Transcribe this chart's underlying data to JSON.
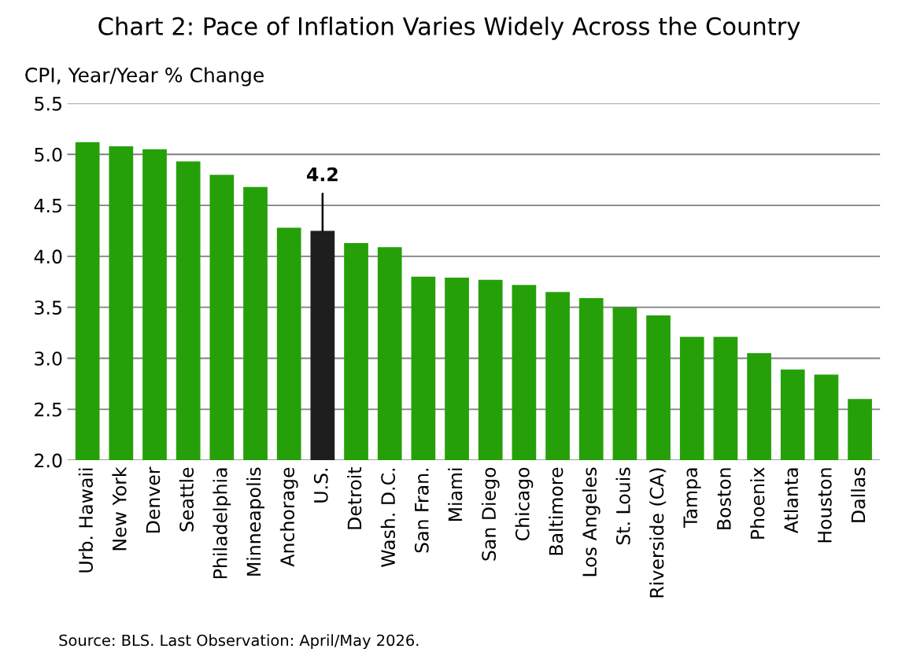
{
  "chart_data": {
    "type": "bar",
    "title": "Chart 2: Pace of Inflation Varies Widely Across the Country",
    "ylabel": "CPI, Year/Year % Change",
    "categories": [
      "Urb. Hawaii",
      "New York",
      "Denver",
      "Seattle",
      "Philadelphia",
      "Minneapolis",
      "Anchorage",
      "U.S.",
      "Detroit",
      "Wash. D.C.",
      "San Fran.",
      "Miami",
      "San Diego",
      "Chicago",
      "Baltimore",
      "Los Angeles",
      "St. Louis",
      "Riverside (CA)",
      "Tampa",
      "Boston",
      "Phoenix",
      "Atlanta",
      "Houston",
      "Dallas"
    ],
    "values": [
      5.12,
      5.08,
      5.05,
      4.93,
      4.8,
      4.68,
      4.28,
      4.25,
      4.13,
      4.09,
      3.8,
      3.79,
      3.77,
      3.72,
      3.65,
      3.59,
      3.5,
      3.42,
      3.21,
      3.21,
      3.05,
      2.89,
      2.84,
      2.6
    ],
    "colors": [
      "#26a009",
      "#26a009",
      "#26a009",
      "#26a009",
      "#26a009",
      "#26a009",
      "#26a009",
      "#1e1e1e",
      "#26a009",
      "#26a009",
      "#26a009",
      "#26a009",
      "#26a009",
      "#26a009",
      "#26a009",
      "#26a009",
      "#26a009",
      "#26a009",
      "#26a009",
      "#26a009",
      "#26a009",
      "#26a009",
      "#26a009",
      "#26a009"
    ],
    "ylim": [
      2.0,
      5.5
    ],
    "yticks": [
      {
        "value": 2.0,
        "label": "2.0"
      },
      {
        "value": 2.5,
        "label": "2.5"
      },
      {
        "value": 3.0,
        "label": "3.0"
      },
      {
        "value": 3.5,
        "label": "3.5"
      },
      {
        "value": 4.0,
        "label": "4.0"
      },
      {
        "value": 4.5,
        "label": "4.5"
      },
      {
        "value": 5.0,
        "label": "5.0"
      },
      {
        "value": 5.5,
        "label": "5.5"
      }
    ],
    "grid": "y",
    "legend": false,
    "annotations": [
      {
        "text": "4.2",
        "x": "U.S.",
        "y": 4.25
      },
      "Source: BLS. Last Observation: April/May 2026."
    ]
  }
}
